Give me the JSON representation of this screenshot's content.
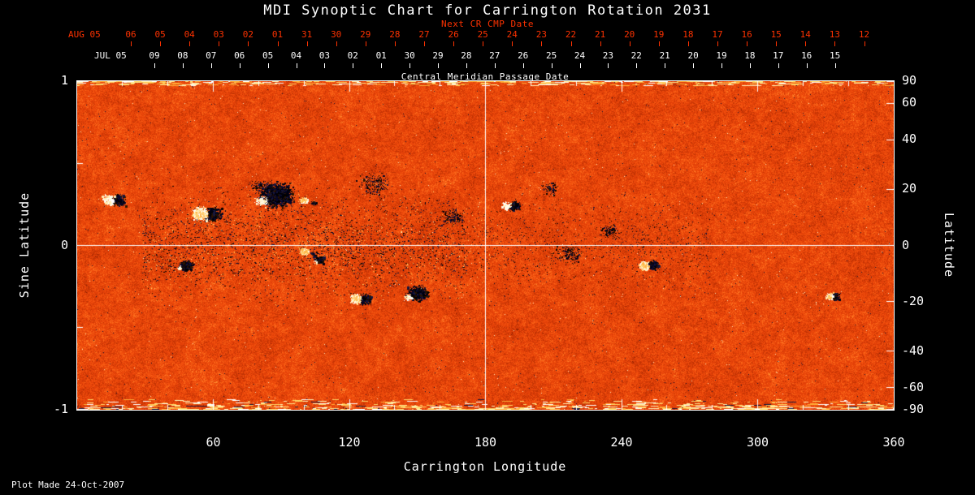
{
  "chart_data": {
    "type": "heatmap",
    "title": "MDI Synoptic Chart for Carrington Rotation 2031",
    "description": "Solar magnetogram synoptic map: orange-red noise background with dark (negative polarity) and white (positive polarity) magnetic active regions",
    "x_axis": {
      "label": "Carrington Longitude",
      "range": [
        0,
        360
      ],
      "major_ticks": [
        60,
        120,
        180,
        240,
        300,
        360
      ],
      "minor_tick_step": 20
    },
    "y_left": {
      "label": "Sine Latitude",
      "range": [
        -1,
        1
      ],
      "ticks": [
        1,
        0,
        -1
      ]
    },
    "y_right": {
      "label": "Latitude",
      "ticks": [
        90,
        60,
        40,
        20,
        0,
        -20,
        -40,
        -60,
        -90
      ]
    },
    "top_axis_next_cr": {
      "label": "Next CR CMP Date",
      "month_label": "AUG 05",
      "ticks": [
        "06",
        "05",
        "04",
        "03",
        "02",
        "01",
        "31",
        "30",
        "29",
        "28",
        "27",
        "26",
        "25",
        "24",
        "23",
        "22",
        "21",
        "20",
        "19",
        "18",
        "17",
        "16",
        "15",
        "14",
        "13",
        "12"
      ],
      "color": "#ff3200"
    },
    "top_axis_cmp": {
      "label": "Central Meridian Passage Date",
      "month_label": "JUL 05",
      "ticks": [
        "09",
        "08",
        "07",
        "06",
        "05",
        "04",
        "03",
        "02",
        "01",
        "30",
        "29",
        "28",
        "27",
        "26",
        "25",
        "24",
        "23",
        "22",
        "21",
        "20",
        "19",
        "18",
        "17",
        "16",
        "15"
      ],
      "color": "#ffffff"
    },
    "reference_lines": {
      "equator_sine_latitude": 0,
      "meridian_longitude": 180,
      "color": "#ffffff"
    },
    "active_regions": [
      {
        "lon": 16,
        "lat": 16,
        "extent_deg": 13,
        "polarity": "mixed"
      },
      {
        "lon": 57,
        "lat": 11,
        "extent_deg": 16,
        "polarity": "mixed",
        "white_dominant": true
      },
      {
        "lon": 88,
        "lat": 18,
        "extent_deg": 26,
        "polarity": "negative"
      },
      {
        "lon": 100,
        "lat": 16,
        "extent_deg": 10,
        "polarity": "positive"
      },
      {
        "lon": 100,
        "lat": -2,
        "extent_deg": 11,
        "polarity": "positive"
      },
      {
        "lon": 107,
        "lat": -5,
        "extent_deg": 8,
        "polarity": "negative"
      },
      {
        "lon": 125,
        "lat": -19,
        "extent_deg": 12,
        "polarity": "mixed",
        "white_dominant": true
      },
      {
        "lon": 150,
        "lat": -17,
        "extent_deg": 16,
        "polarity": "negative"
      },
      {
        "lon": 131,
        "lat": 22,
        "extent_deg": 18,
        "polarity": "sparse"
      },
      {
        "lon": 80,
        "lat": 21,
        "extent_deg": 12,
        "polarity": "sparse"
      },
      {
        "lon": 48,
        "lat": -7,
        "extent_deg": 11,
        "polarity": "negative"
      },
      {
        "lon": 166,
        "lat": 10,
        "extent_deg": 14,
        "polarity": "sparse"
      },
      {
        "lon": 191,
        "lat": 14,
        "extent_deg": 11,
        "polarity": "mixed"
      },
      {
        "lon": 217,
        "lat": -3,
        "extent_deg": 15,
        "polarity": "sparse"
      },
      {
        "lon": 252,
        "lat": -7,
        "extent_deg": 11,
        "polarity": "mixed",
        "white_dominant": true
      },
      {
        "lon": 333,
        "lat": -18,
        "extent_deg": 8,
        "polarity": "mixed",
        "white_dominant": true
      },
      {
        "lon": 208,
        "lat": 20,
        "extent_deg": 10,
        "polarity": "sparse"
      },
      {
        "lon": 235,
        "lat": 5,
        "extent_deg": 12,
        "polarity": "sparse"
      }
    ],
    "footer": "Plot Made 24-Oct-2007",
    "colors": {
      "background": "#000000",
      "frame": "#ffffff",
      "next_cr_axis": "#ff3200",
      "base_map": "#e2470b",
      "negative_polarity": "#06062a",
      "positive_polarity": "#ffffff"
    }
  }
}
